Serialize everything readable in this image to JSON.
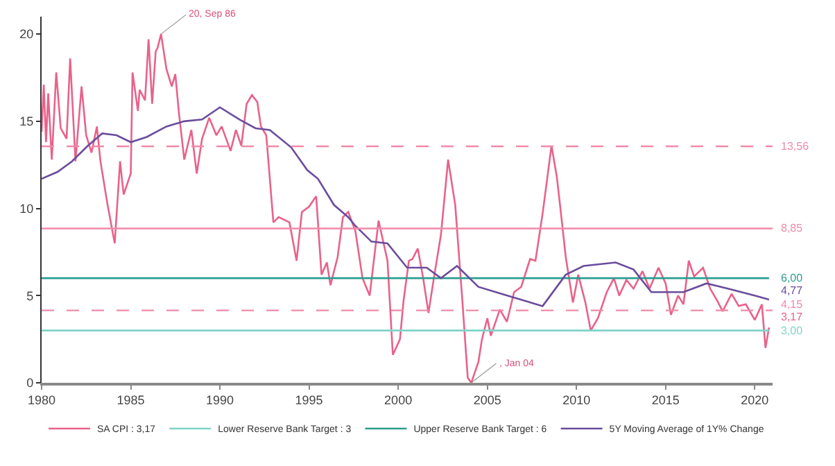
{
  "chart_data": {
    "type": "line",
    "xlim": [
      1980,
      2021
    ],
    "xticks": [
      1980,
      1985,
      1990,
      1995,
      2000,
      2005,
      2010,
      2015,
      2020
    ],
    "ylim": [
      0,
      21
    ],
    "yticks": [
      0,
      5,
      10,
      15,
      20
    ],
    "legend": "bottom",
    "marker": "none",
    "line_style": "solid",
    "series": [
      {
        "name": "SA CPI : 3,17",
        "color": "#e8628a",
        "x": [
          1980.0,
          1980.12,
          1980.25,
          1980.37,
          1980.57,
          1980.82,
          1981.07,
          1981.4,
          1981.6,
          1981.9,
          1982.24,
          1982.5,
          1982.8,
          1983.1,
          1983.3,
          1983.7,
          1984.1,
          1984.4,
          1984.6,
          1985.0,
          1985.1,
          1985.4,
          1985.5,
          1985.8,
          1986.0,
          1986.2,
          1986.4,
          1986.5,
          1986.7,
          1987.0,
          1987.3,
          1987.5,
          1987.7,
          1988.0,
          1988.4,
          1988.7,
          1989.0,
          1989.4,
          1989.8,
          1990.1,
          1990.6,
          1990.9,
          1991.2,
          1991.5,
          1991.8,
          1992.1,
          1992.3,
          1992.6,
          1993.0,
          1993.3,
          1993.9,
          1994.3,
          1994.6,
          1995.0,
          1995.4,
          1995.7,
          1996.0,
          1996.2,
          1996.6,
          1996.9,
          1997.2,
          1997.6,
          1998.0,
          1998.4,
          1998.9,
          1999.4,
          1999.7,
          2000.1,
          2000.3,
          2000.6,
          2000.8,
          2001.1,
          2001.4,
          2001.7,
          2002.0,
          2002.4,
          2002.8,
          2003.2,
          2003.6,
          2003.9,
          2004.1,
          2004.5,
          2004.7,
          2005.0,
          2005.2,
          2005.7,
          2006.1,
          2006.5,
          2006.9,
          2007.4,
          2007.7,
          2008.1,
          2008.6,
          2008.9,
          2009.1,
          2009.4,
          2009.8,
          2010.1,
          2010.5,
          2010.8,
          2011.2,
          2011.7,
          2012.1,
          2012.4,
          2012.8,
          2013.2,
          2013.7,
          2014.1,
          2014.6,
          2015.0,
          2015.3,
          2015.7,
          2016.0,
          2016.3,
          2016.6,
          2017.1,
          2017.5,
          2017.9,
          2018.2,
          2018.7,
          2019.1,
          2019.5,
          2020.0,
          2020.4,
          2020.6,
          2020.8
        ],
        "values": [
          14.4,
          17.1,
          13.8,
          16.6,
          12.8,
          17.8,
          14.6,
          14.0,
          18.6,
          12.7,
          17.0,
          14.2,
          13.2,
          14.7,
          12.7,
          10.2,
          8.0,
          12.7,
          10.8,
          12.0,
          17.8,
          15.6,
          16.8,
          16.2,
          19.7,
          16.0,
          19.0,
          19.2,
          20.0,
          18.0,
          17.0,
          17.7,
          15.5,
          12.8,
          14.5,
          12.0,
          14.0,
          15.2,
          14.2,
          14.7,
          13.3,
          14.5,
          13.6,
          16.0,
          16.5,
          16.1,
          14.7,
          14.2,
          9.2,
          9.5,
          9.2,
          7.0,
          9.8,
          10.1,
          10.7,
          6.2,
          6.9,
          5.6,
          7.2,
          9.5,
          9.8,
          8.7,
          6.0,
          5.0,
          9.3,
          7.0,
          1.6,
          2.5,
          4.7,
          7.0,
          7.1,
          7.7,
          6.0,
          4.0,
          6.0,
          8.5,
          12.8,
          10.2,
          4.7,
          0.3,
          0.0,
          1.2,
          2.5,
          3.7,
          2.7,
          4.2,
          3.5,
          5.2,
          5.5,
          7.1,
          7.0,
          9.7,
          13.6,
          11.8,
          10.0,
          7.2,
          4.6,
          6.2,
          4.6,
          3.0,
          3.7,
          5.2,
          6.0,
          5.0,
          5.9,
          5.4,
          6.4,
          5.4,
          6.6,
          5.7,
          3.9,
          5.0,
          4.5,
          7.0,
          6.1,
          6.6,
          5.4,
          4.7,
          4.1,
          5.1,
          4.4,
          4.5,
          3.6,
          4.5,
          2.0,
          3.17
        ],
        "value_labels": [
          null,
          null,
          null,
          null,
          null,
          null,
          null,
          null,
          null,
          null,
          null,
          null,
          null,
          null,
          null,
          null,
          null,
          null,
          null,
          null,
          null,
          null,
          null,
          null,
          null,
          null,
          null,
          null,
          null,
          null,
          null,
          null,
          null,
          null,
          null,
          null,
          null,
          null,
          null,
          null,
          null,
          null,
          null,
          null,
          null,
          null,
          null,
          null,
          null,
          null,
          null,
          null,
          null,
          null,
          null,
          null,
          null,
          null,
          null,
          null,
          null,
          null,
          null,
          null,
          null,
          null,
          null,
          null,
          null,
          null,
          null,
          null,
          null,
          null,
          null,
          null,
          null,
          null,
          null,
          null,
          null,
          null,
          null,
          null,
          null,
          null,
          null,
          null,
          null,
          null,
          null,
          null,
          null,
          null,
          null,
          null,
          null,
          null,
          null,
          null,
          null,
          null,
          null,
          null,
          null,
          null,
          null,
          null,
          null,
          null,
          null,
          null,
          null,
          null,
          null,
          null,
          null,
          null,
          null,
          null,
          null,
          null,
          null,
          null,
          null,
          "3,17"
        ]
      },
      {
        "name": "Lower Reserve Bank Target : 3",
        "color": "#7fd3c8",
        "x": [
          1980,
          2020.8
        ],
        "values": [
          3,
          3
        ],
        "value_labels": [
          null,
          "3,00"
        ]
      },
      {
        "name": "Upper Reserve Bank Target : 6",
        "color": "#2a9d8f",
        "x": [
          1980,
          2020.8
        ],
        "values": [
          6,
          6
        ],
        "value_labels": [
          null,
          "6,00"
        ]
      },
      {
        "name": "5Y Moving Average of 1Y% Change",
        "color": "#6a4c9c",
        "x": [
          1980.0,
          1980.9,
          1981.7,
          1982.6,
          1983.4,
          1984.2,
          1985.0,
          1985.9,
          1987.0,
          1988.0,
          1989.0,
          1990.0,
          1991.1,
          1992.0,
          1992.8,
          1994.0,
          1994.9,
          1995.5,
          1996.4,
          1997.2,
          1997.6,
          1998.5,
          1999.4,
          2000.5,
          2001.6,
          2002.4,
          2003.3,
          2004.5,
          2005.8,
          2007.1,
          2008.1,
          2009.4,
          2010.4,
          2012.2,
          2013.2,
          2014.2,
          2016.0,
          2017.3,
          2018.5,
          2020.0,
          2020.8
        ],
        "values": [
          11.7,
          12.1,
          12.7,
          13.6,
          14.3,
          14.2,
          13.8,
          14.1,
          14.7,
          15.0,
          15.1,
          15.8,
          15.1,
          14.6,
          14.5,
          13.5,
          12.2,
          11.7,
          10.2,
          9.5,
          9.0,
          8.1,
          8.0,
          6.6,
          6.6,
          6.0,
          6.7,
          5.5,
          5.1,
          4.7,
          4.4,
          6.2,
          6.7,
          6.9,
          6.5,
          5.2,
          5.2,
          5.7,
          5.4,
          5.0,
          4.77
        ],
        "value_labels": [
          null,
          null,
          null,
          null,
          null,
          null,
          null,
          null,
          null,
          null,
          null,
          null,
          null,
          null,
          null,
          null,
          null,
          null,
          null,
          null,
          null,
          null,
          null,
          null,
          null,
          null,
          null,
          null,
          null,
          null,
          null,
          null,
          null,
          null,
          null,
          null,
          null,
          null,
          null,
          null,
          "4,77"
        ]
      }
    ],
    "ref_lines": [
      {
        "axis": "y",
        "value": 13.56,
        "label": "13,56",
        "color": "#f08aa8",
        "line_style": "dashed"
      },
      {
        "axis": "y",
        "value": 8.85,
        "label": "8,85",
        "color": "#f08aa8",
        "line_style": "solid"
      },
      {
        "axis": "y",
        "value": 4.15,
        "label": "4,15",
        "color": "#f08aa8",
        "line_style": "dashed"
      }
    ],
    "annotations": [
      {
        "text": "20, Sep 86",
        "x": 1986.7,
        "y": 20.0
      },
      {
        "text": ", Jan 04",
        "x": 2004.1,
        "y": 0.0
      }
    ]
  }
}
